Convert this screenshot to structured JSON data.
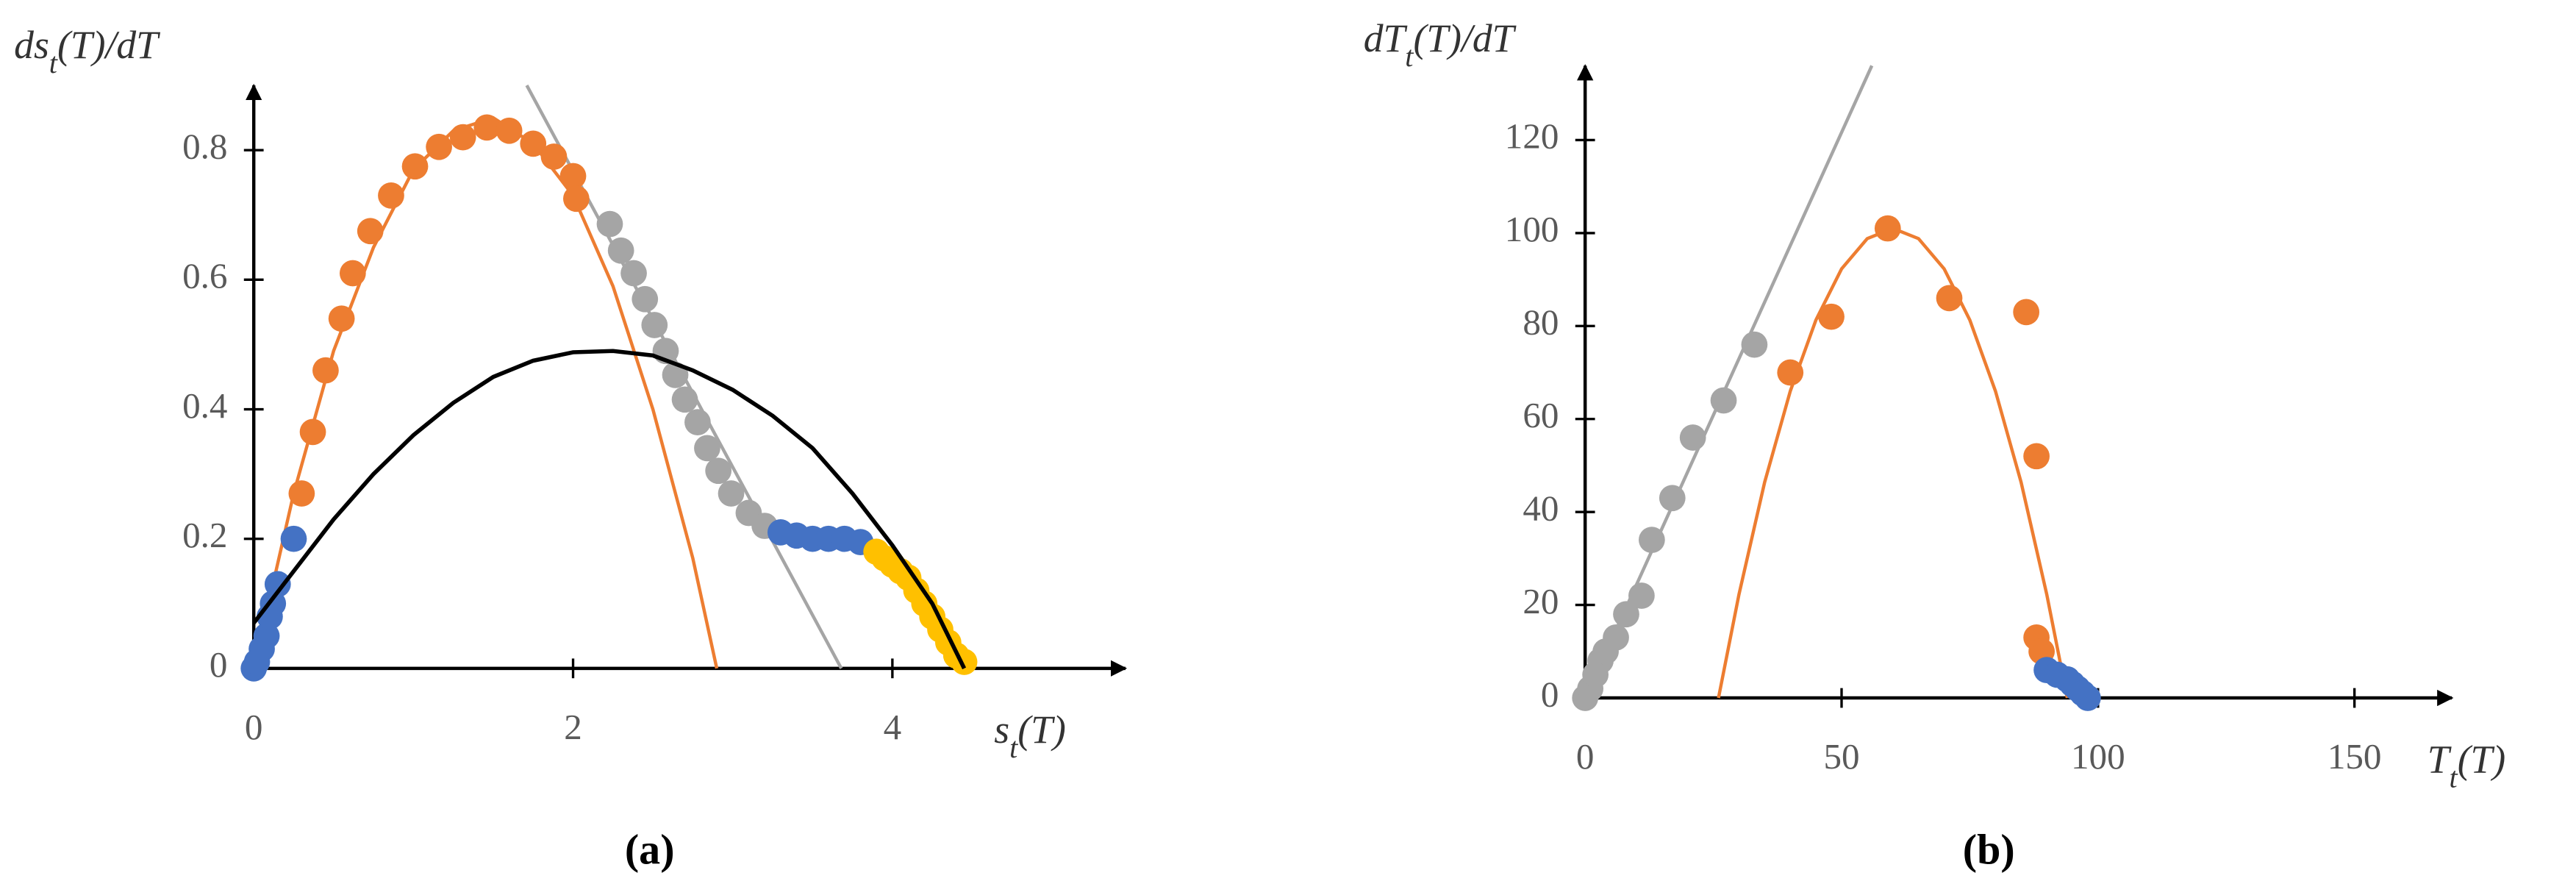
{
  "chart_data": [
    {
      "type": "scatter",
      "panel_label": "(a)",
      "xlabel": {
        "main": "s",
        "sub": "t",
        "rest": "(T)"
      },
      "ylabel": {
        "main": "ds",
        "sub": "t",
        "rest": "(T)/dT"
      },
      "xlim": [
        0,
        5.46
      ],
      "ylim": [
        0,
        0.9
      ],
      "xticks": [
        0,
        2,
        4
      ],
      "yticks": [
        0,
        0.2,
        0.4,
        0.6,
        0.8
      ],
      "series": [
        {
          "mode": "line",
          "color": "#a5a5a5",
          "x": [
            1.71,
            3.68
          ],
          "values": [
            0.9,
            0
          ]
        },
        {
          "mode": "line",
          "color": "#ed7d31",
          "x": [
            0,
            0.25,
            0.5,
            0.75,
            1,
            1.25,
            1.5,
            1.75,
            2,
            2.25,
            2.5,
            2.75,
            2.9
          ],
          "values": [
            0,
            0.27,
            0.49,
            0.65,
            0.77,
            0.83,
            0.85,
            0.81,
            0.73,
            0.59,
            0.4,
            0.17,
            0
          ]
        },
        {
          "mode": "markers",
          "color": "#ed7d31",
          "x": [
            0.3,
            0.37,
            0.45,
            0.55,
            0.62,
            0.73,
            0.86,
            1.01,
            1.16,
            1.31,
            1.46,
            1.6,
            1.75,
            1.88,
            2.0,
            2.02
          ],
          "values": [
            0.27,
            0.365,
            0.46,
            0.54,
            0.61,
            0.675,
            0.73,
            0.775,
            0.805,
            0.82,
            0.835,
            0.83,
            0.81,
            0.79,
            0.76,
            0.725
          ]
        },
        {
          "mode": "markers",
          "color": "#a5a5a5",
          "x": [
            2.23,
            2.3,
            2.38,
            2.45,
            2.51,
            2.58,
            2.64,
            2.7,
            2.78,
            2.84,
            2.91,
            2.99,
            3.1,
            3.2
          ],
          "values": [
            0.686,
            0.645,
            0.61,
            0.57,
            0.53,
            0.49,
            0.453,
            0.415,
            0.38,
            0.34,
            0.305,
            0.27,
            0.24,
            0.22
          ]
        },
        {
          "mode": "markers",
          "color": "#4472c4",
          "x": [
            0,
            0.02,
            0.05,
            0.08,
            0.1,
            0.12,
            0.15,
            0.25,
            3.3,
            3.4,
            3.5,
            3.6,
            3.7,
            3.8
          ],
          "values": [
            0,
            0.01,
            0.03,
            0.05,
            0.08,
            0.1,
            0.13,
            0.2,
            0.21,
            0.205,
            0.2,
            0.2,
            0.2,
            0.195
          ]
        },
        {
          "mode": "markers",
          "color": "#ffc000",
          "x": [
            3.9,
            3.95,
            4.0,
            4.05,
            4.1,
            4.15,
            4.2,
            4.25,
            4.3,
            4.35,
            4.4,
            4.45
          ],
          "values": [
            0.18,
            0.17,
            0.16,
            0.15,
            0.14,
            0.12,
            0.1,
            0.08,
            0.06,
            0.04,
            0.02,
            0.01
          ]
        },
        {
          "mode": "line",
          "color": "#000000",
          "x": [
            0,
            0.25,
            0.5,
            0.75,
            1,
            1.25,
            1.5,
            1.75,
            2,
            2.25,
            2.5,
            2.75,
            3,
            3.25,
            3.5,
            3.75,
            4,
            4.25,
            4.45
          ],
          "values": [
            0.07,
            0.15,
            0.23,
            0.3,
            0.36,
            0.41,
            0.45,
            0.475,
            0.488,
            0.49,
            0.483,
            0.46,
            0.43,
            0.39,
            0.34,
            0.27,
            0.19,
            0.1,
            0
          ]
        }
      ]
    },
    {
      "type": "scatter",
      "panel_label": "(b)",
      "xlabel": {
        "main": "T",
        "sub": "t",
        "rest": "(T)"
      },
      "ylabel": {
        "main": "dT",
        "sub": "t",
        "rest": "(T)/dT"
      },
      "xlim": [
        0,
        169
      ],
      "ylim": [
        0,
        136
      ],
      "xticks": [
        0,
        50,
        100,
        150
      ],
      "yticks": [
        0,
        20,
        40,
        60,
        80,
        100,
        120
      ],
      "series": [
        {
          "mode": "line",
          "color": "#a5a5a5",
          "x": [
            0,
            55.9
          ],
          "values": [
            0,
            136
          ]
        },
        {
          "mode": "line",
          "color": "#ed7d31",
          "x": [
            26,
            30,
            35,
            40,
            45,
            50,
            55,
            60,
            65,
            70,
            75,
            80,
            85,
            90,
            94
          ],
          "values": [
            0,
            22.3,
            46.4,
            66,
            81.3,
            92.3,
            98.8,
            101,
            98.8,
            92.3,
            81.3,
            66,
            46.4,
            22.3,
            0
          ]
        },
        {
          "mode": "markers",
          "color": "#a5a5a5",
          "x": [
            0,
            1,
            2,
            3,
            4,
            6,
            8,
            11,
            13,
            17,
            21,
            27,
            33
          ],
          "values": [
            0,
            2,
            5,
            8,
            10,
            13,
            18,
            22,
            34,
            43,
            56,
            64,
            76
          ]
        },
        {
          "mode": "markers",
          "color": "#ed7d31",
          "x": [
            40,
            48,
            59,
            71,
            86,
            88,
            88,
            89
          ],
          "values": [
            70,
            82,
            101,
            86,
            83,
            52,
            13,
            10
          ]
        },
        {
          "mode": "markers",
          "color": "#4472c4",
          "x": [
            90,
            92,
            94,
            95,
            96,
            97,
            98
          ],
          "values": [
            6,
            5,
            4,
            3,
            2,
            1,
            0
          ]
        }
      ]
    }
  ]
}
